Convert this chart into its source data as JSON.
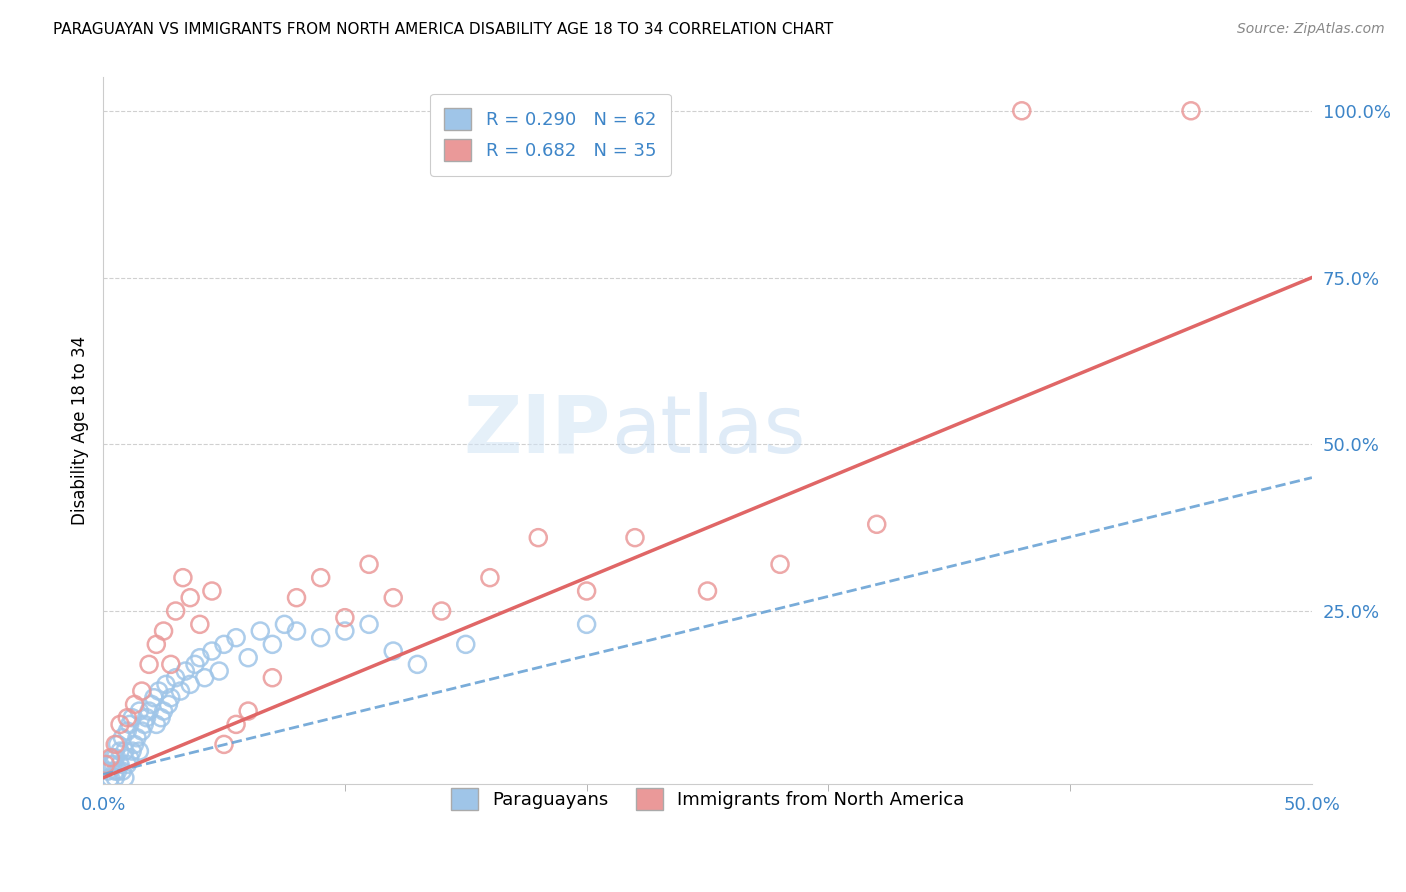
{
  "title": "PARAGUAYAN VS IMMIGRANTS FROM NORTH AMERICA DISABILITY AGE 18 TO 34 CORRELATION CHART",
  "source": "Source: ZipAtlas.com",
  "ylabel": "Disability Age 18 to 34",
  "xlim": [
    0.0,
    0.5
  ],
  "ylim": [
    -0.01,
    1.05
  ],
  "ytick_labels": [
    "25.0%",
    "50.0%",
    "75.0%",
    "100.0%"
  ],
  "ytick_positions": [
    0.25,
    0.5,
    0.75,
    1.0
  ],
  "blue_color": "#9fc5e8",
  "pink_color": "#ea9999",
  "blue_line_color": "#6aa3d5",
  "pink_line_color": "#e06666",
  "legend_r_blue": "R = 0.290   N = 62",
  "legend_r_pink": "R = 0.682   N = 35",
  "legend_label_blue": "Paraguayans",
  "legend_label_pink": "Immigrants from North America",
  "watermark_zip": "ZIP",
  "watermark_atlas": "atlas",
  "background_color": "#ffffff",
  "grid_color": "#d0d0d0",
  "blue_x": [
    0.002,
    0.003,
    0.003,
    0.004,
    0.004,
    0.005,
    0.005,
    0.005,
    0.006,
    0.006,
    0.007,
    0.007,
    0.008,
    0.008,
    0.009,
    0.009,
    0.01,
    0.01,
    0.011,
    0.011,
    0.012,
    0.012,
    0.013,
    0.014,
    0.015,
    0.015,
    0.016,
    0.017,
    0.018,
    0.019,
    0.02,
    0.021,
    0.022,
    0.023,
    0.024,
    0.025,
    0.026,
    0.027,
    0.028,
    0.03,
    0.032,
    0.034,
    0.036,
    0.038,
    0.04,
    0.042,
    0.045,
    0.048,
    0.05,
    0.055,
    0.06,
    0.065,
    0.07,
    0.075,
    0.08,
    0.09,
    0.1,
    0.11,
    0.12,
    0.13,
    0.15,
    0.2
  ],
  "blue_y": [
    0.01,
    0.02,
    0.0,
    0.02,
    0.03,
    0.0,
    0.01,
    0.03,
    0.01,
    0.05,
    0.02,
    0.04,
    0.01,
    0.06,
    0.0,
    0.04,
    0.02,
    0.07,
    0.03,
    0.08,
    0.04,
    0.09,
    0.05,
    0.06,
    0.04,
    0.1,
    0.07,
    0.08,
    0.09,
    0.1,
    0.11,
    0.12,
    0.08,
    0.13,
    0.09,
    0.1,
    0.14,
    0.11,
    0.12,
    0.15,
    0.13,
    0.16,
    0.14,
    0.17,
    0.18,
    0.15,
    0.19,
    0.16,
    0.2,
    0.21,
    0.18,
    0.22,
    0.2,
    0.23,
    0.22,
    0.21,
    0.22,
    0.23,
    0.19,
    0.17,
    0.2,
    0.23
  ],
  "pink_x": [
    0.001,
    0.003,
    0.005,
    0.007,
    0.01,
    0.013,
    0.016,
    0.019,
    0.022,
    0.025,
    0.028,
    0.03,
    0.033,
    0.036,
    0.04,
    0.045,
    0.05,
    0.055,
    0.06,
    0.07,
    0.08,
    0.09,
    0.1,
    0.11,
    0.12,
    0.14,
    0.16,
    0.18,
    0.2,
    0.22,
    0.25,
    0.28,
    0.32,
    0.38,
    0.45
  ],
  "pink_y": [
    0.02,
    0.03,
    0.05,
    0.08,
    0.09,
    0.11,
    0.13,
    0.17,
    0.2,
    0.22,
    0.17,
    0.25,
    0.3,
    0.27,
    0.23,
    0.28,
    0.05,
    0.08,
    0.1,
    0.15,
    0.27,
    0.3,
    0.24,
    0.32,
    0.27,
    0.25,
    0.3,
    0.36,
    0.28,
    0.36,
    0.28,
    0.32,
    0.38,
    1.0,
    1.0
  ],
  "blue_trend_x0": 0.0,
  "blue_trend_y0": 0.005,
  "blue_trend_x1": 0.5,
  "blue_trend_y1": 0.45,
  "pink_trend_x0": 0.0,
  "pink_trend_y0": 0.0,
  "pink_trend_x1": 0.5,
  "pink_trend_y1": 0.75
}
